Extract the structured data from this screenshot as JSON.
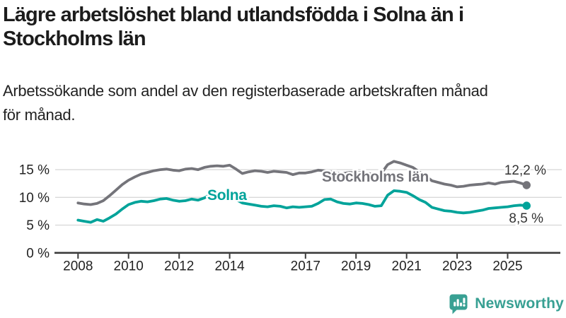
{
  "header": {
    "title_line1": "Lägre arbetslöshet bland utlandsfödda i Solna än i",
    "title_line2": "Stockholms län",
    "subtitle_line1": "Arbetssökande som andel av den registerbaserade arbetskraften månad",
    "subtitle_line2": "för månad."
  },
  "footer": {
    "brand": "Newsworthy",
    "brand_color": "#38a093"
  },
  "chart_data": {
    "type": "line",
    "unit": "%",
    "grid": true,
    "x_start": 2008,
    "x_step_years": 0.25,
    "x_end": 2025.75,
    "ylim": [
      0,
      17.5
    ],
    "x_tick_values": [
      2008,
      2010,
      2012,
      2014,
      2017,
      2019,
      2021,
      2023,
      2025
    ],
    "x_tick_labels": [
      "2008",
      "2010",
      "2012",
      "2014",
      "2017",
      "2019",
      "2021",
      "2023",
      "2025"
    ],
    "y_tick_values": [
      0,
      5,
      10,
      15
    ],
    "y_tick_labels": [
      "0 %",
      "5 %",
      "10 %",
      "15 %"
    ],
    "axis_color": "#3a3a3a",
    "grid_color": "#d9d9d9",
    "tick_label_color": "#222222",
    "end_label_color": "#333333",
    "series": [
      {
        "name": "Stockholms län",
        "color": "#74747a",
        "end_label": "12,2 %",
        "end_value": 12.2,
        "values": [
          9.0,
          8.8,
          8.7,
          8.9,
          9.4,
          10.3,
          11.3,
          12.3,
          13.1,
          13.7,
          14.2,
          14.5,
          14.8,
          15.0,
          15.1,
          14.9,
          14.8,
          15.1,
          15.2,
          15.0,
          15.4,
          15.6,
          15.7,
          15.6,
          15.8,
          15.1,
          14.3,
          14.6,
          14.8,
          14.7,
          14.5,
          14.7,
          14.6,
          14.5,
          14.1,
          14.4,
          14.4,
          14.6,
          14.9,
          14.8,
          14.6,
          14.4,
          14.3,
          14.5,
          14.4,
          14.5,
          14.3,
          14.0,
          14.3,
          15.9,
          16.5,
          16.2,
          15.8,
          15.4,
          14.6,
          13.9,
          13.0,
          12.7,
          12.4,
          12.2,
          11.9,
          12.0,
          12.2,
          12.3,
          12.4,
          12.6,
          12.4,
          12.7,
          12.8,
          12.9,
          12.6,
          12.2
        ]
      },
      {
        "name": "Solna",
        "color": "#00a39a",
        "end_label": "8,5 %",
        "end_value": 8.5,
        "values": [
          5.9,
          5.7,
          5.5,
          6.0,
          5.7,
          6.3,
          7.0,
          7.9,
          8.7,
          9.1,
          9.3,
          9.2,
          9.4,
          9.7,
          9.8,
          9.5,
          9.3,
          9.4,
          9.7,
          9.5,
          9.9,
          10.6,
          10.9,
          10.6,
          10.3,
          9.6,
          9.0,
          8.8,
          8.6,
          8.4,
          8.3,
          8.5,
          8.4,
          8.1,
          8.3,
          8.2,
          8.3,
          8.4,
          8.9,
          9.6,
          9.7,
          9.2,
          8.9,
          8.8,
          9.0,
          8.9,
          8.7,
          8.4,
          8.5,
          10.4,
          11.2,
          11.1,
          10.9,
          10.3,
          9.6,
          9.1,
          8.2,
          7.9,
          7.6,
          7.5,
          7.3,
          7.2,
          7.3,
          7.5,
          7.7,
          8.0,
          8.1,
          8.2,
          8.3,
          8.5,
          8.6,
          8.5
        ]
      }
    ]
  }
}
